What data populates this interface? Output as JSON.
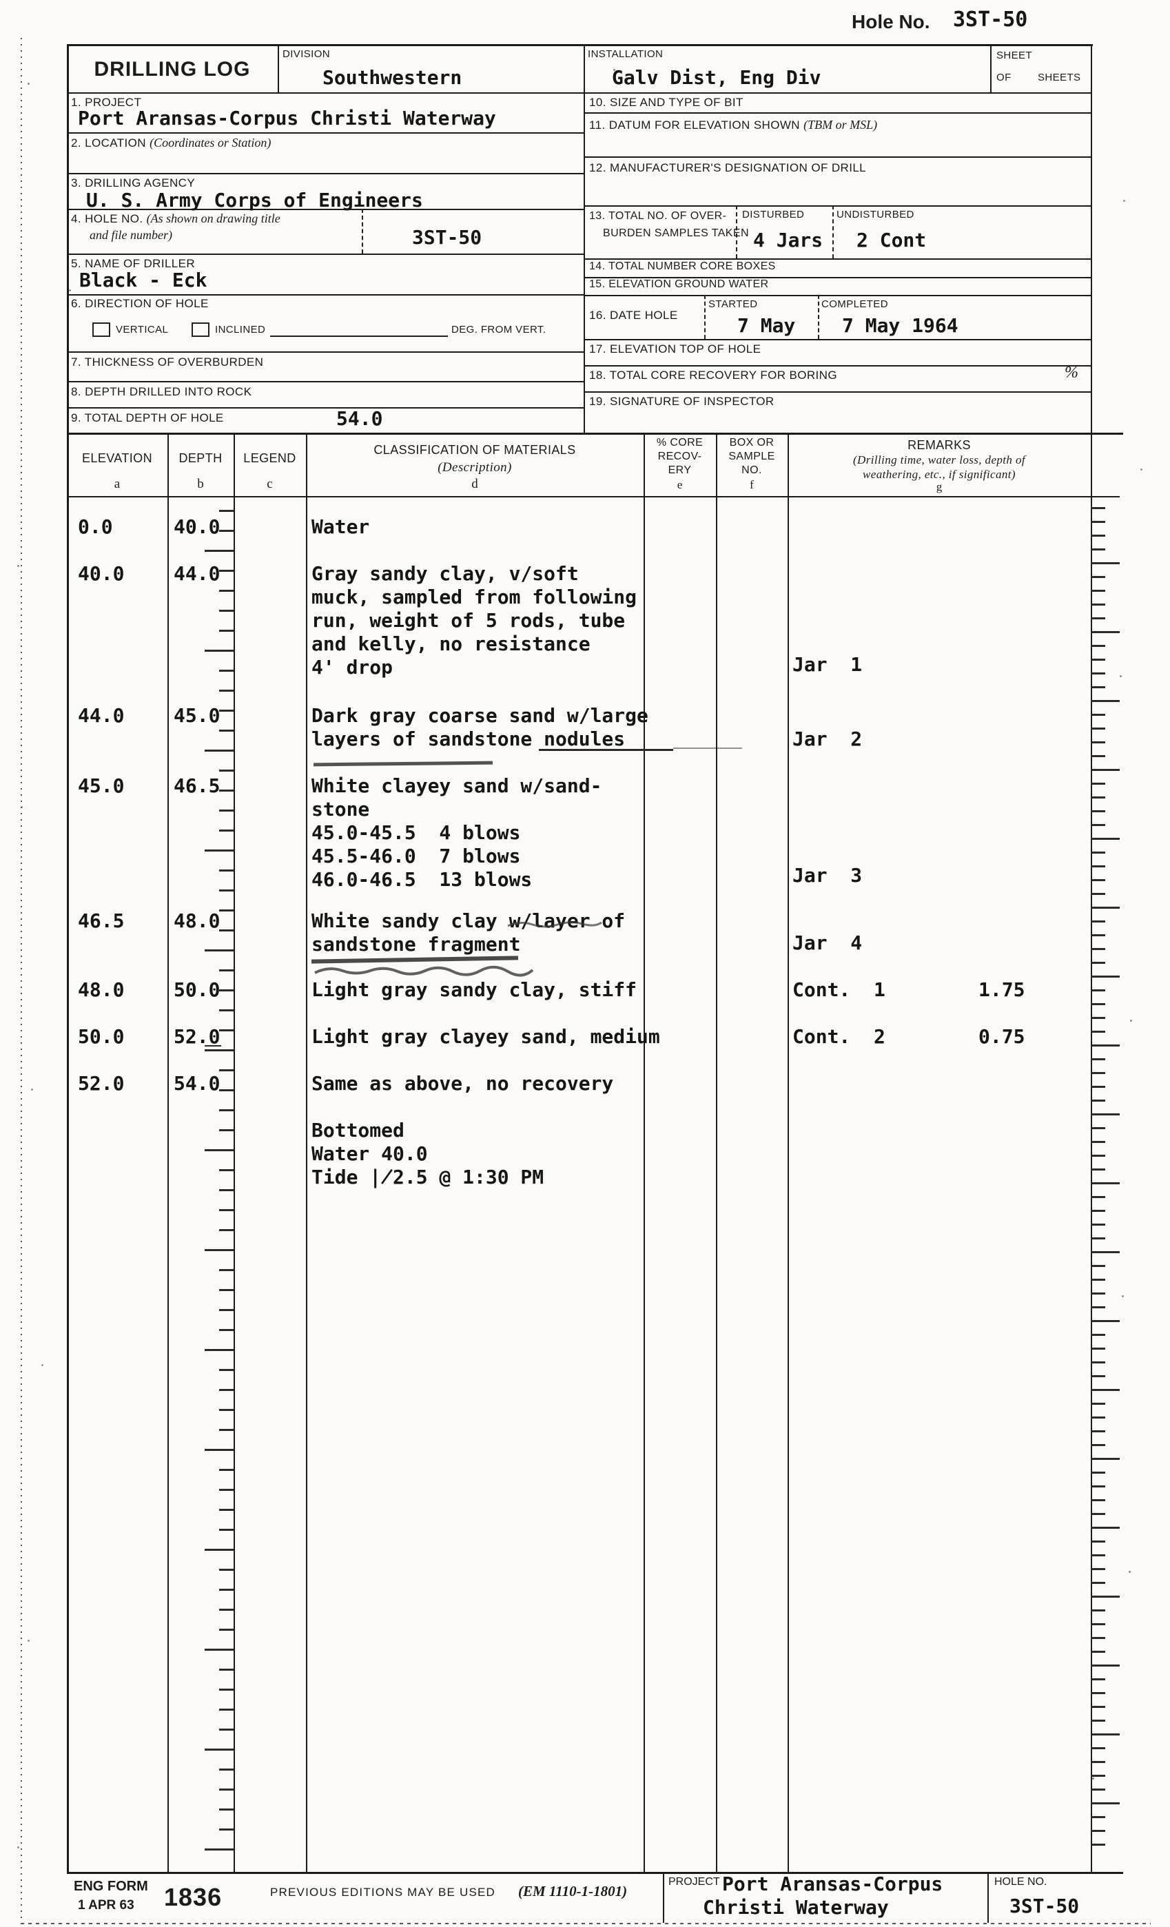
{
  "top": {
    "hole_no_label": "Hole No.",
    "hole_no_value": "3ST-50"
  },
  "form_header": {
    "title": "DRILLING LOG",
    "division_label": "DIVISION",
    "division_value": "Southwestern",
    "installation_label": "INSTALLATION",
    "installation_value": "Galv Dist, Eng Div",
    "sheet_label": "SHEET",
    "sheet_of_label": "OF",
    "sheets_label": "SHEETS"
  },
  "fields": {
    "project": {
      "label": "1. PROJECT",
      "value": "Port Aransas-Corpus Christi Waterway"
    },
    "location": {
      "label": "2. LOCATION",
      "label_note": "(Coordinates or Station)",
      "value": ""
    },
    "drilling_agency": {
      "label": "3. DRILLING AGENCY",
      "value": "U. S. Army Corps of Engineers"
    },
    "hole_no": {
      "label": "4. HOLE NO.",
      "label_note1": "(As shown on drawing title",
      "label_note2": "and file number)",
      "value": "3ST-50"
    },
    "name_of_driller": {
      "label": "5. NAME OF DRILLER",
      "value": "Black - Eck"
    },
    "direction_of_hole": {
      "label": "6. DIRECTION OF HOLE",
      "vertical_label": "VERTICAL",
      "inclined_label": "INCLINED",
      "deg_label": "DEG. FROM VERT."
    },
    "thickness_overburden": {
      "label": "7. THICKNESS OF OVERBURDEN",
      "value": ""
    },
    "depth_into_rock": {
      "label": "8. DEPTH DRILLED INTO ROCK",
      "value": ""
    },
    "total_depth": {
      "label": "9. TOTAL DEPTH OF HOLE",
      "value": "54.0"
    },
    "bit": {
      "label": "10. SIZE AND TYPE OF BIT",
      "value": ""
    },
    "datum": {
      "label": "11. DATUM FOR ELEVATION SHOWN",
      "label_note": "(TBM or MSL)",
      "value": ""
    },
    "drill_designation": {
      "label": "12. MANUFACTURER'S DESIGNATION OF DRILL",
      "value": ""
    },
    "overburden_samples": {
      "label_line1": "13. TOTAL NO. OF OVER-",
      "label_line2": "BURDEN SAMPLES TAKEN",
      "disturbed_label": "DISTURBED",
      "disturbed_value": "4 Jars",
      "undisturbed_label": "UNDISTURBED",
      "undisturbed_value": "2 Cont"
    },
    "core_boxes": {
      "label": "14. TOTAL NUMBER CORE BOXES",
      "value": ""
    },
    "ground_water": {
      "label": "15. ELEVATION GROUND WATER",
      "value": ""
    },
    "date_hole": {
      "label": "16. DATE HOLE",
      "started_label": "STARTED",
      "started_value": "7 May",
      "completed_label": "COMPLETED",
      "completed_value": "7 May 1964"
    },
    "elevation_top": {
      "label": "17. ELEVATION TOP OF HOLE",
      "value": ""
    },
    "core_recovery": {
      "label": "18. TOTAL CORE RECOVERY FOR BORING",
      "percent_sign": "%",
      "value": ""
    },
    "inspector": {
      "label": "19. SIGNATURE OF INSPECTOR",
      "value": ""
    }
  },
  "log_table": {
    "header": {
      "elevation": "ELEVATION",
      "elevation_letter": "a",
      "depth": "DEPTH",
      "depth_letter": "b",
      "legend": "LEGEND",
      "legend_letter": "c",
      "classification": "CLASSIFICATION OF MATERIALS",
      "classification_sub": "(Description)",
      "classification_letter": "d",
      "core_lines": [
        "% CORE",
        "RECOV-",
        "ERY"
      ],
      "core_letter": "e",
      "box_lines": [
        "BOX OR",
        "SAMPLE",
        "NO."
      ],
      "box_letter": "f",
      "remarks": "REMARKS",
      "remarks_sub1": "(Drilling time, water loss, depth of",
      "remarks_sub2": "weathering, etc., if significant)",
      "remarks_letter": "g"
    },
    "rows": [
      {
        "elevation": "0.0",
        "depth": "40.0",
        "description": [
          "Water"
        ]
      },
      {
        "elevation": "40.0",
        "depth": "44.0",
        "description": [
          "Gray sandy clay, v/soft",
          "muck, sampled from following",
          "run, weight of 5 rods, tube",
          "and kelly, no resistance",
          "4' drop"
        ],
        "sample": "Jar  1"
      },
      {
        "elevation": "44.0",
        "depth": "45.0",
        "description": [
          "Dark gray coarse sand w/large",
          "layers of sandstone nodules"
        ],
        "sample": "Jar  2"
      },
      {
        "elevation": "45.0",
        "depth": "46.5",
        "description": [
          "White clayey sand w/sand-",
          "stone",
          "45.0-45.5  4 blows",
          "45.5-46.0  7 blows",
          "46.0-46.5  13 blows"
        ],
        "sample": "Jar  3"
      },
      {
        "elevation": "46.5",
        "depth": "48.0",
        "description": [
          "White sandy clay w/layer of",
          "sandstone fragment"
        ],
        "sample": "Jar  4"
      },
      {
        "elevation": "48.0",
        "depth": "50.0",
        "description": [
          "Light gray sandy clay, stiff"
        ],
        "sample": "Cont.  1",
        "remark_value": "1.75"
      },
      {
        "elevation": "50.0",
        "depth": "52.0",
        "description": [
          "Light gray clayey sand, medium"
        ],
        "sample": "Cont.  2",
        "remark_value": "0.75"
      },
      {
        "elevation": "52.0",
        "depth": "54.0",
        "description": [
          "Same as above, no recovery"
        ]
      },
      {
        "elevation": "",
        "depth": "",
        "description": [
          "Bottomed",
          "Water 40.0",
          "Tide ∤2.5 @ 1:30 PM"
        ]
      }
    ]
  },
  "footer": {
    "form_label": "ENG FORM",
    "form_date": "1 APR 63",
    "form_number": "1836",
    "previous_editions": "PREVIOUS EDITIONS MAY BE USED",
    "em_ref": "(EM 1110-1-1801)",
    "project_label": "PROJECT",
    "project_value_line1": "Port Aransas-Corpus",
    "project_value_line2": "Christi Waterway",
    "hole_no_label": "HOLE NO.",
    "hole_no_value": "3ST-50"
  }
}
